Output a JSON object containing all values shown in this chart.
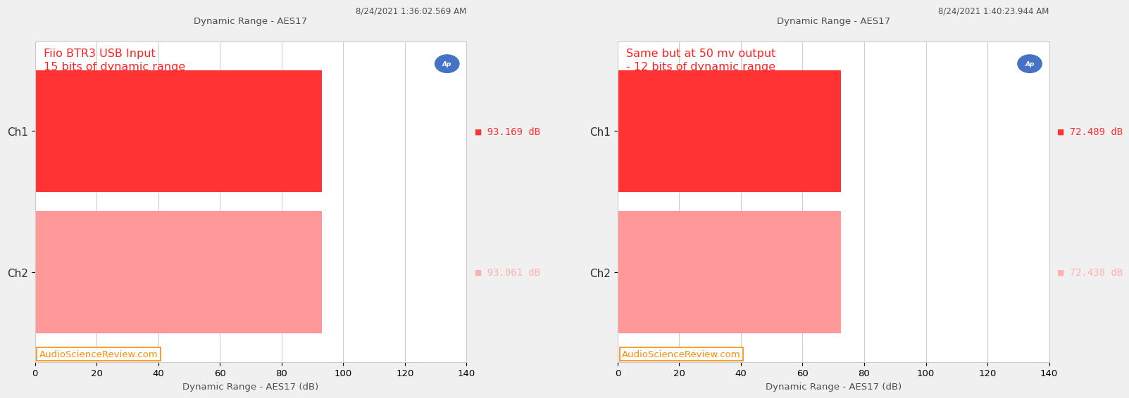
{
  "charts": [
    {
      "title": "Dynamic Range - AES17",
      "timestamp": "8/24/2021 1:36:02.569 AM",
      "annotation_line1": "Fiio BTR3 USB Input",
      "annotation_line2": "15 bits of dynamic range",
      "ch1_value": 93.169,
      "ch2_value": 93.061,
      "ch1_label": "93.169 dB",
      "ch2_label": "93.061 dB",
      "bar_color_ch1": "#FF3333",
      "bar_color_ch2": "#FF9999",
      "xlim": [
        0,
        140
      ],
      "xticks": [
        0,
        20,
        40,
        60,
        80,
        100,
        120,
        140
      ],
      "xlabel": "Dynamic Range - AES17 (dB)"
    },
    {
      "title": "Dynamic Range - AES17",
      "timestamp": "8/24/2021 1:40:23.944 AM",
      "annotation_line1": "Same but at 50 mv output",
      "annotation_line2": "- 12 bits of dynamic range",
      "ch1_value": 72.489,
      "ch2_value": 72.438,
      "ch1_label": "72.489 dB",
      "ch2_label": "72.438 dB",
      "bar_color_ch1": "#FF3333",
      "bar_color_ch2": "#FF9999",
      "xlim": [
        0,
        140
      ],
      "xticks": [
        0,
        20,
        40,
        60,
        80,
        100,
        120,
        140
      ],
      "xlabel": "Dynamic Range - AES17 (dB)"
    }
  ],
  "bg_color": "#F0F0F0",
  "plot_bg_color": "#FFFFFF",
  "grid_color": "#CCCCCC",
  "annotation_color": "#FF2222",
  "watermark_text": "AudioScienceReview.com",
  "watermark_color": "#FF8C00",
  "ap_logo_color": "#4472C4",
  "label_color_ch1": "#FF3333",
  "label_color_ch2": "#FFB0B0",
  "title_color": "#505050",
  "timestamp_color": "#505050",
  "ch_label_color": "#303030"
}
